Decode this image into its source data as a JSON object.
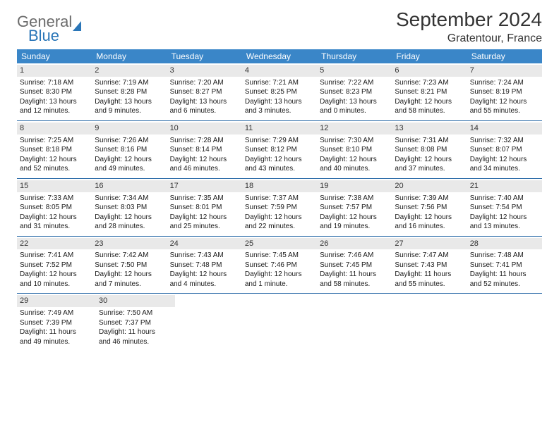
{
  "logo": {
    "text1": "General",
    "text2": "Blue"
  },
  "title": "September 2024",
  "location": "Gratentour, France",
  "colors": {
    "header_bg": "#3a86c8",
    "header_text": "#ffffff",
    "daynum_bg": "#e9e9e9",
    "row_border": "#2a6aa8",
    "body_text": "#1a1a1a",
    "logo_gray": "#6b6b6b",
    "logo_blue": "#2a76b8"
  },
  "weekdays": [
    "Sunday",
    "Monday",
    "Tuesday",
    "Wednesday",
    "Thursday",
    "Friday",
    "Saturday"
  ],
  "weeks": [
    [
      {
        "n": "1",
        "sr": "Sunrise: 7:18 AM",
        "ss": "Sunset: 8:30 PM",
        "d1": "Daylight: 13 hours",
        "d2": "and 12 minutes."
      },
      {
        "n": "2",
        "sr": "Sunrise: 7:19 AM",
        "ss": "Sunset: 8:28 PM",
        "d1": "Daylight: 13 hours",
        "d2": "and 9 minutes."
      },
      {
        "n": "3",
        "sr": "Sunrise: 7:20 AM",
        "ss": "Sunset: 8:27 PM",
        "d1": "Daylight: 13 hours",
        "d2": "and 6 minutes."
      },
      {
        "n": "4",
        "sr": "Sunrise: 7:21 AM",
        "ss": "Sunset: 8:25 PM",
        "d1": "Daylight: 13 hours",
        "d2": "and 3 minutes."
      },
      {
        "n": "5",
        "sr": "Sunrise: 7:22 AM",
        "ss": "Sunset: 8:23 PM",
        "d1": "Daylight: 13 hours",
        "d2": "and 0 minutes."
      },
      {
        "n": "6",
        "sr": "Sunrise: 7:23 AM",
        "ss": "Sunset: 8:21 PM",
        "d1": "Daylight: 12 hours",
        "d2": "and 58 minutes."
      },
      {
        "n": "7",
        "sr": "Sunrise: 7:24 AM",
        "ss": "Sunset: 8:19 PM",
        "d1": "Daylight: 12 hours",
        "d2": "and 55 minutes."
      }
    ],
    [
      {
        "n": "8",
        "sr": "Sunrise: 7:25 AM",
        "ss": "Sunset: 8:18 PM",
        "d1": "Daylight: 12 hours",
        "d2": "and 52 minutes."
      },
      {
        "n": "9",
        "sr": "Sunrise: 7:26 AM",
        "ss": "Sunset: 8:16 PM",
        "d1": "Daylight: 12 hours",
        "d2": "and 49 minutes."
      },
      {
        "n": "10",
        "sr": "Sunrise: 7:28 AM",
        "ss": "Sunset: 8:14 PM",
        "d1": "Daylight: 12 hours",
        "d2": "and 46 minutes."
      },
      {
        "n": "11",
        "sr": "Sunrise: 7:29 AM",
        "ss": "Sunset: 8:12 PM",
        "d1": "Daylight: 12 hours",
        "d2": "and 43 minutes."
      },
      {
        "n": "12",
        "sr": "Sunrise: 7:30 AM",
        "ss": "Sunset: 8:10 PM",
        "d1": "Daylight: 12 hours",
        "d2": "and 40 minutes."
      },
      {
        "n": "13",
        "sr": "Sunrise: 7:31 AM",
        "ss": "Sunset: 8:08 PM",
        "d1": "Daylight: 12 hours",
        "d2": "and 37 minutes."
      },
      {
        "n": "14",
        "sr": "Sunrise: 7:32 AM",
        "ss": "Sunset: 8:07 PM",
        "d1": "Daylight: 12 hours",
        "d2": "and 34 minutes."
      }
    ],
    [
      {
        "n": "15",
        "sr": "Sunrise: 7:33 AM",
        "ss": "Sunset: 8:05 PM",
        "d1": "Daylight: 12 hours",
        "d2": "and 31 minutes."
      },
      {
        "n": "16",
        "sr": "Sunrise: 7:34 AM",
        "ss": "Sunset: 8:03 PM",
        "d1": "Daylight: 12 hours",
        "d2": "and 28 minutes."
      },
      {
        "n": "17",
        "sr": "Sunrise: 7:35 AM",
        "ss": "Sunset: 8:01 PM",
        "d1": "Daylight: 12 hours",
        "d2": "and 25 minutes."
      },
      {
        "n": "18",
        "sr": "Sunrise: 7:37 AM",
        "ss": "Sunset: 7:59 PM",
        "d1": "Daylight: 12 hours",
        "d2": "and 22 minutes."
      },
      {
        "n": "19",
        "sr": "Sunrise: 7:38 AM",
        "ss": "Sunset: 7:57 PM",
        "d1": "Daylight: 12 hours",
        "d2": "and 19 minutes."
      },
      {
        "n": "20",
        "sr": "Sunrise: 7:39 AM",
        "ss": "Sunset: 7:56 PM",
        "d1": "Daylight: 12 hours",
        "d2": "and 16 minutes."
      },
      {
        "n": "21",
        "sr": "Sunrise: 7:40 AM",
        "ss": "Sunset: 7:54 PM",
        "d1": "Daylight: 12 hours",
        "d2": "and 13 minutes."
      }
    ],
    [
      {
        "n": "22",
        "sr": "Sunrise: 7:41 AM",
        "ss": "Sunset: 7:52 PM",
        "d1": "Daylight: 12 hours",
        "d2": "and 10 minutes."
      },
      {
        "n": "23",
        "sr": "Sunrise: 7:42 AM",
        "ss": "Sunset: 7:50 PM",
        "d1": "Daylight: 12 hours",
        "d2": "and 7 minutes."
      },
      {
        "n": "24",
        "sr": "Sunrise: 7:43 AM",
        "ss": "Sunset: 7:48 PM",
        "d1": "Daylight: 12 hours",
        "d2": "and 4 minutes."
      },
      {
        "n": "25",
        "sr": "Sunrise: 7:45 AM",
        "ss": "Sunset: 7:46 PM",
        "d1": "Daylight: 12 hours",
        "d2": "and 1 minute."
      },
      {
        "n": "26",
        "sr": "Sunrise: 7:46 AM",
        "ss": "Sunset: 7:45 PM",
        "d1": "Daylight: 11 hours",
        "d2": "and 58 minutes."
      },
      {
        "n": "27",
        "sr": "Sunrise: 7:47 AM",
        "ss": "Sunset: 7:43 PM",
        "d1": "Daylight: 11 hours",
        "d2": "and 55 minutes."
      },
      {
        "n": "28",
        "sr": "Sunrise: 7:48 AM",
        "ss": "Sunset: 7:41 PM",
        "d1": "Daylight: 11 hours",
        "d2": "and 52 minutes."
      }
    ],
    [
      {
        "n": "29",
        "sr": "Sunrise: 7:49 AM",
        "ss": "Sunset: 7:39 PM",
        "d1": "Daylight: 11 hours",
        "d2": "and 49 minutes."
      },
      {
        "n": "30",
        "sr": "Sunrise: 7:50 AM",
        "ss": "Sunset: 7:37 PM",
        "d1": "Daylight: 11 hours",
        "d2": "and 46 minutes."
      },
      null,
      null,
      null,
      null,
      null
    ]
  ]
}
